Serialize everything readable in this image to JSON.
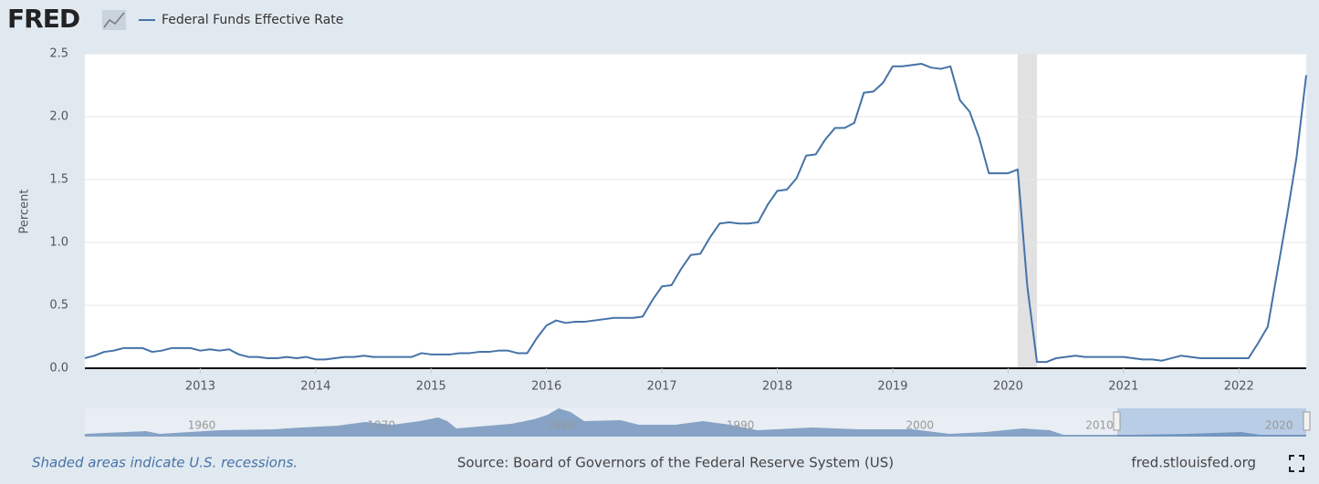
{
  "brand": "FRED",
  "chart_data": {
    "type": "line",
    "y_label": "Percent",
    "x": [
      "2012-01",
      "2012-02",
      "2012-03",
      "2012-04",
      "2012-05",
      "2012-06",
      "2012-07",
      "2012-08",
      "2012-09",
      "2012-10",
      "2012-11",
      "2012-12",
      "2013-01",
      "2013-02",
      "2013-03",
      "2013-04",
      "2013-05",
      "2013-06",
      "2013-07",
      "2013-08",
      "2013-09",
      "2013-10",
      "2013-11",
      "2013-12",
      "2014-01",
      "2014-02",
      "2014-03",
      "2014-04",
      "2014-05",
      "2014-06",
      "2014-07",
      "2014-08",
      "2014-09",
      "2014-10",
      "2014-11",
      "2014-12",
      "2015-01",
      "2015-02",
      "2015-03",
      "2015-04",
      "2015-05",
      "2015-06",
      "2015-07",
      "2015-08",
      "2015-09",
      "2015-10",
      "2015-11",
      "2015-12",
      "2016-01",
      "2016-02",
      "2016-03",
      "2016-04",
      "2016-05",
      "2016-06",
      "2016-07",
      "2016-08",
      "2016-09",
      "2016-10",
      "2016-11",
      "2016-12",
      "2017-01",
      "2017-02",
      "2017-03",
      "2017-04",
      "2017-05",
      "2017-06",
      "2017-07",
      "2017-08",
      "2017-09",
      "2017-10",
      "2017-11",
      "2017-12",
      "2018-01",
      "2018-02",
      "2018-03",
      "2018-04",
      "2018-05",
      "2018-06",
      "2018-07",
      "2018-08",
      "2018-09",
      "2018-10",
      "2018-11",
      "2018-12",
      "2019-01",
      "2019-02",
      "2019-03",
      "2019-04",
      "2019-05",
      "2019-06",
      "2019-07",
      "2019-08",
      "2019-09",
      "2019-10",
      "2019-11",
      "2019-12",
      "2020-01",
      "2020-02",
      "2020-03",
      "2020-04",
      "2020-05",
      "2020-06",
      "2020-07",
      "2020-08",
      "2020-09",
      "2020-10",
      "2020-11",
      "2020-12",
      "2021-01",
      "2021-02",
      "2021-03",
      "2021-04",
      "2021-05",
      "2021-06",
      "2021-07",
      "2021-08",
      "2021-09",
      "2021-10",
      "2021-11",
      "2021-12",
      "2022-01",
      "2022-02",
      "2022-03",
      "2022-04",
      "2022-05",
      "2022-06",
      "2022-07",
      "2022-08"
    ],
    "series": [
      {
        "name": "Federal Funds Effective Rate",
        "color": "#4572a7",
        "values": [
          0.08,
          0.1,
          0.13,
          0.14,
          0.16,
          0.16,
          0.16,
          0.13,
          0.14,
          0.16,
          0.16,
          0.16,
          0.14,
          0.15,
          0.14,
          0.15,
          0.11,
          0.09,
          0.09,
          0.08,
          0.08,
          0.09,
          0.08,
          0.09,
          0.07,
          0.07,
          0.08,
          0.09,
          0.09,
          0.1,
          0.09,
          0.09,
          0.09,
          0.09,
          0.09,
          0.12,
          0.11,
          0.11,
          0.11,
          0.12,
          0.12,
          0.13,
          0.13,
          0.14,
          0.14,
          0.12,
          0.12,
          0.24,
          0.34,
          0.38,
          0.36,
          0.37,
          0.37,
          0.38,
          0.39,
          0.4,
          0.4,
          0.4,
          0.41,
          0.54,
          0.65,
          0.66,
          0.79,
          0.9,
          0.91,
          1.04,
          1.15,
          1.16,
          1.15,
          1.15,
          1.16,
          1.3,
          1.41,
          1.42,
          1.51,
          1.69,
          1.7,
          1.82,
          1.91,
          1.91,
          1.95,
          2.19,
          2.2,
          2.27,
          2.4,
          2.4,
          2.41,
          2.42,
          2.39,
          2.38,
          2.4,
          2.13,
          2.04,
          1.83,
          1.55,
          1.55,
          1.55,
          1.58,
          0.65,
          0.05,
          0.05,
          0.08,
          0.09,
          0.1,
          0.09,
          0.09,
          0.09,
          0.09,
          0.09,
          0.08,
          0.07,
          0.07,
          0.06,
          0.08,
          0.1,
          0.09,
          0.08,
          0.08,
          0.08,
          0.08,
          0.08,
          0.08,
          0.2,
          0.33,
          0.77,
          1.21,
          1.68,
          2.33
        ]
      }
    ],
    "xlim": [
      "2012-01",
      "2022-08"
    ],
    "xticks": [
      2013,
      2014,
      2015,
      2016,
      2017,
      2018,
      2019,
      2020,
      2021,
      2022
    ],
    "ylim": [
      0,
      2.5
    ],
    "yticks": [
      {
        "value": 0,
        "label": "0.0"
      },
      0.5,
      {
        "value": 1,
        "label": "1.0"
      },
      1.5,
      {
        "value": 2,
        "label": "2.0"
      },
      2.5
    ],
    "grid": true,
    "recessions": [
      {
        "start": "2020-02",
        "end": "2020-04"
      }
    ],
    "navigator_ticks": [
      1960,
      1970,
      1980,
      1990,
      2000,
      2010,
      2020
    ]
  },
  "footer": {
    "note": "Shaded areas indicate U.S. recessions.",
    "source": "Source: Board of Governors of the Federal Reserve System (US)",
    "site": "fred.stlouisfed.org"
  }
}
